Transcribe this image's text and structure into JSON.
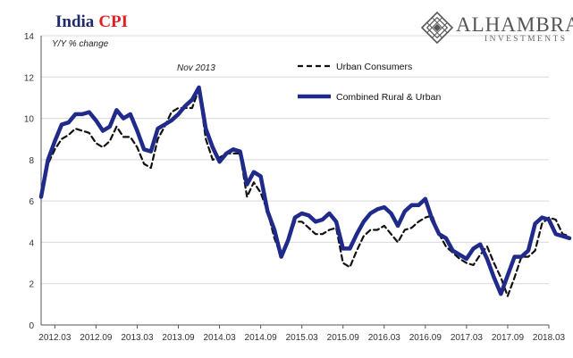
{
  "header": {
    "title_main": "India",
    "title_accent": "CPI",
    "subtitle": "Y/Y % change",
    "annotation": "Nov 2013"
  },
  "logo": {
    "brand": "ALHAMBRA",
    "sub": "INVESTMENTS",
    "icon": "alhambra-lattice-diamond-icon"
  },
  "colors": {
    "combined": "#1f2a8a",
    "urban": "#111111",
    "grid": "#d9d9d9",
    "axis": "#555555"
  },
  "chart_data": {
    "type": "line",
    "title": "India CPI",
    "subtitle": "Y/Y % change",
    "ylabel": "",
    "xlabel": "",
    "ylim": [
      0,
      14
    ],
    "yticks": [
      0,
      2,
      4,
      6,
      8,
      10,
      12,
      14
    ],
    "x_start": "2012.01",
    "x_end": "2018.03",
    "x_ticks": [
      "2012.03",
      "2012.09",
      "2013.03",
      "2013.09",
      "2014.03",
      "2014.09",
      "2015.03",
      "2015.09",
      "2016.03",
      "2016.09",
      "2017.03",
      "2017.09",
      "2018.03"
    ],
    "grid": true,
    "legend_position": "top-right",
    "annotations": [
      {
        "text": "Nov 2013",
        "x": "2013.11"
      }
    ],
    "series": [
      {
        "name": "Urban Consumers",
        "style": "dashed",
        "start": "2012.01",
        "values": [
          6.2,
          7.8,
          8.5,
          9.0,
          9.2,
          9.5,
          9.4,
          9.3,
          8.8,
          8.6,
          8.9,
          9.6,
          9.1,
          9.1,
          8.6,
          7.8,
          7.6,
          9.0,
          9.6,
          10.3,
          10.5,
          10.5,
          10.5,
          11.4,
          9.0,
          8.0,
          8.1,
          8.3,
          8.3,
          8.3,
          6.2,
          6.9,
          6.4,
          5.5,
          4.2,
          3.3,
          4.0,
          5.0,
          5.0,
          4.7,
          4.4,
          4.4,
          4.6,
          4.7,
          3.0,
          2.8,
          3.6,
          4.3,
          4.6,
          4.6,
          4.8,
          4.4,
          4.0,
          4.6,
          4.7,
          5.0,
          5.2,
          5.3,
          4.4,
          3.8,
          3.5,
          3.2,
          3.0,
          2.9,
          3.4,
          3.8,
          3.0,
          2.3,
          1.4,
          2.3,
          3.3,
          3.3,
          3.6,
          4.9,
          5.2,
          5.1,
          4.4,
          4.3
        ]
      },
      {
        "name": "Combined Rural & Urban",
        "style": "solid",
        "start": "2012.01",
        "values": [
          6.2,
          8.0,
          8.9,
          9.7,
          9.8,
          10.2,
          10.2,
          10.3,
          9.9,
          9.4,
          9.6,
          10.4,
          10.0,
          10.2,
          9.4,
          8.5,
          8.4,
          9.5,
          9.7,
          9.9,
          10.2,
          10.6,
          10.9,
          11.5,
          9.5,
          8.6,
          7.9,
          8.3,
          8.5,
          8.4,
          6.8,
          7.4,
          7.2,
          5.5,
          4.6,
          3.3,
          4.1,
          5.2,
          5.4,
          5.3,
          5.0,
          5.1,
          5.4,
          5.0,
          3.7,
          3.7,
          4.4,
          5.0,
          5.4,
          5.6,
          5.7,
          5.4,
          4.8,
          5.5,
          5.8,
          5.8,
          6.1,
          5.1,
          4.4,
          4.2,
          3.6,
          3.4,
          3.2,
          3.7,
          3.9,
          3.2,
          2.3,
          1.5,
          2.4,
          3.3,
          3.3,
          3.6,
          4.9,
          5.2,
          5.1,
          4.4,
          4.3,
          4.2
        ]
      }
    ]
  }
}
